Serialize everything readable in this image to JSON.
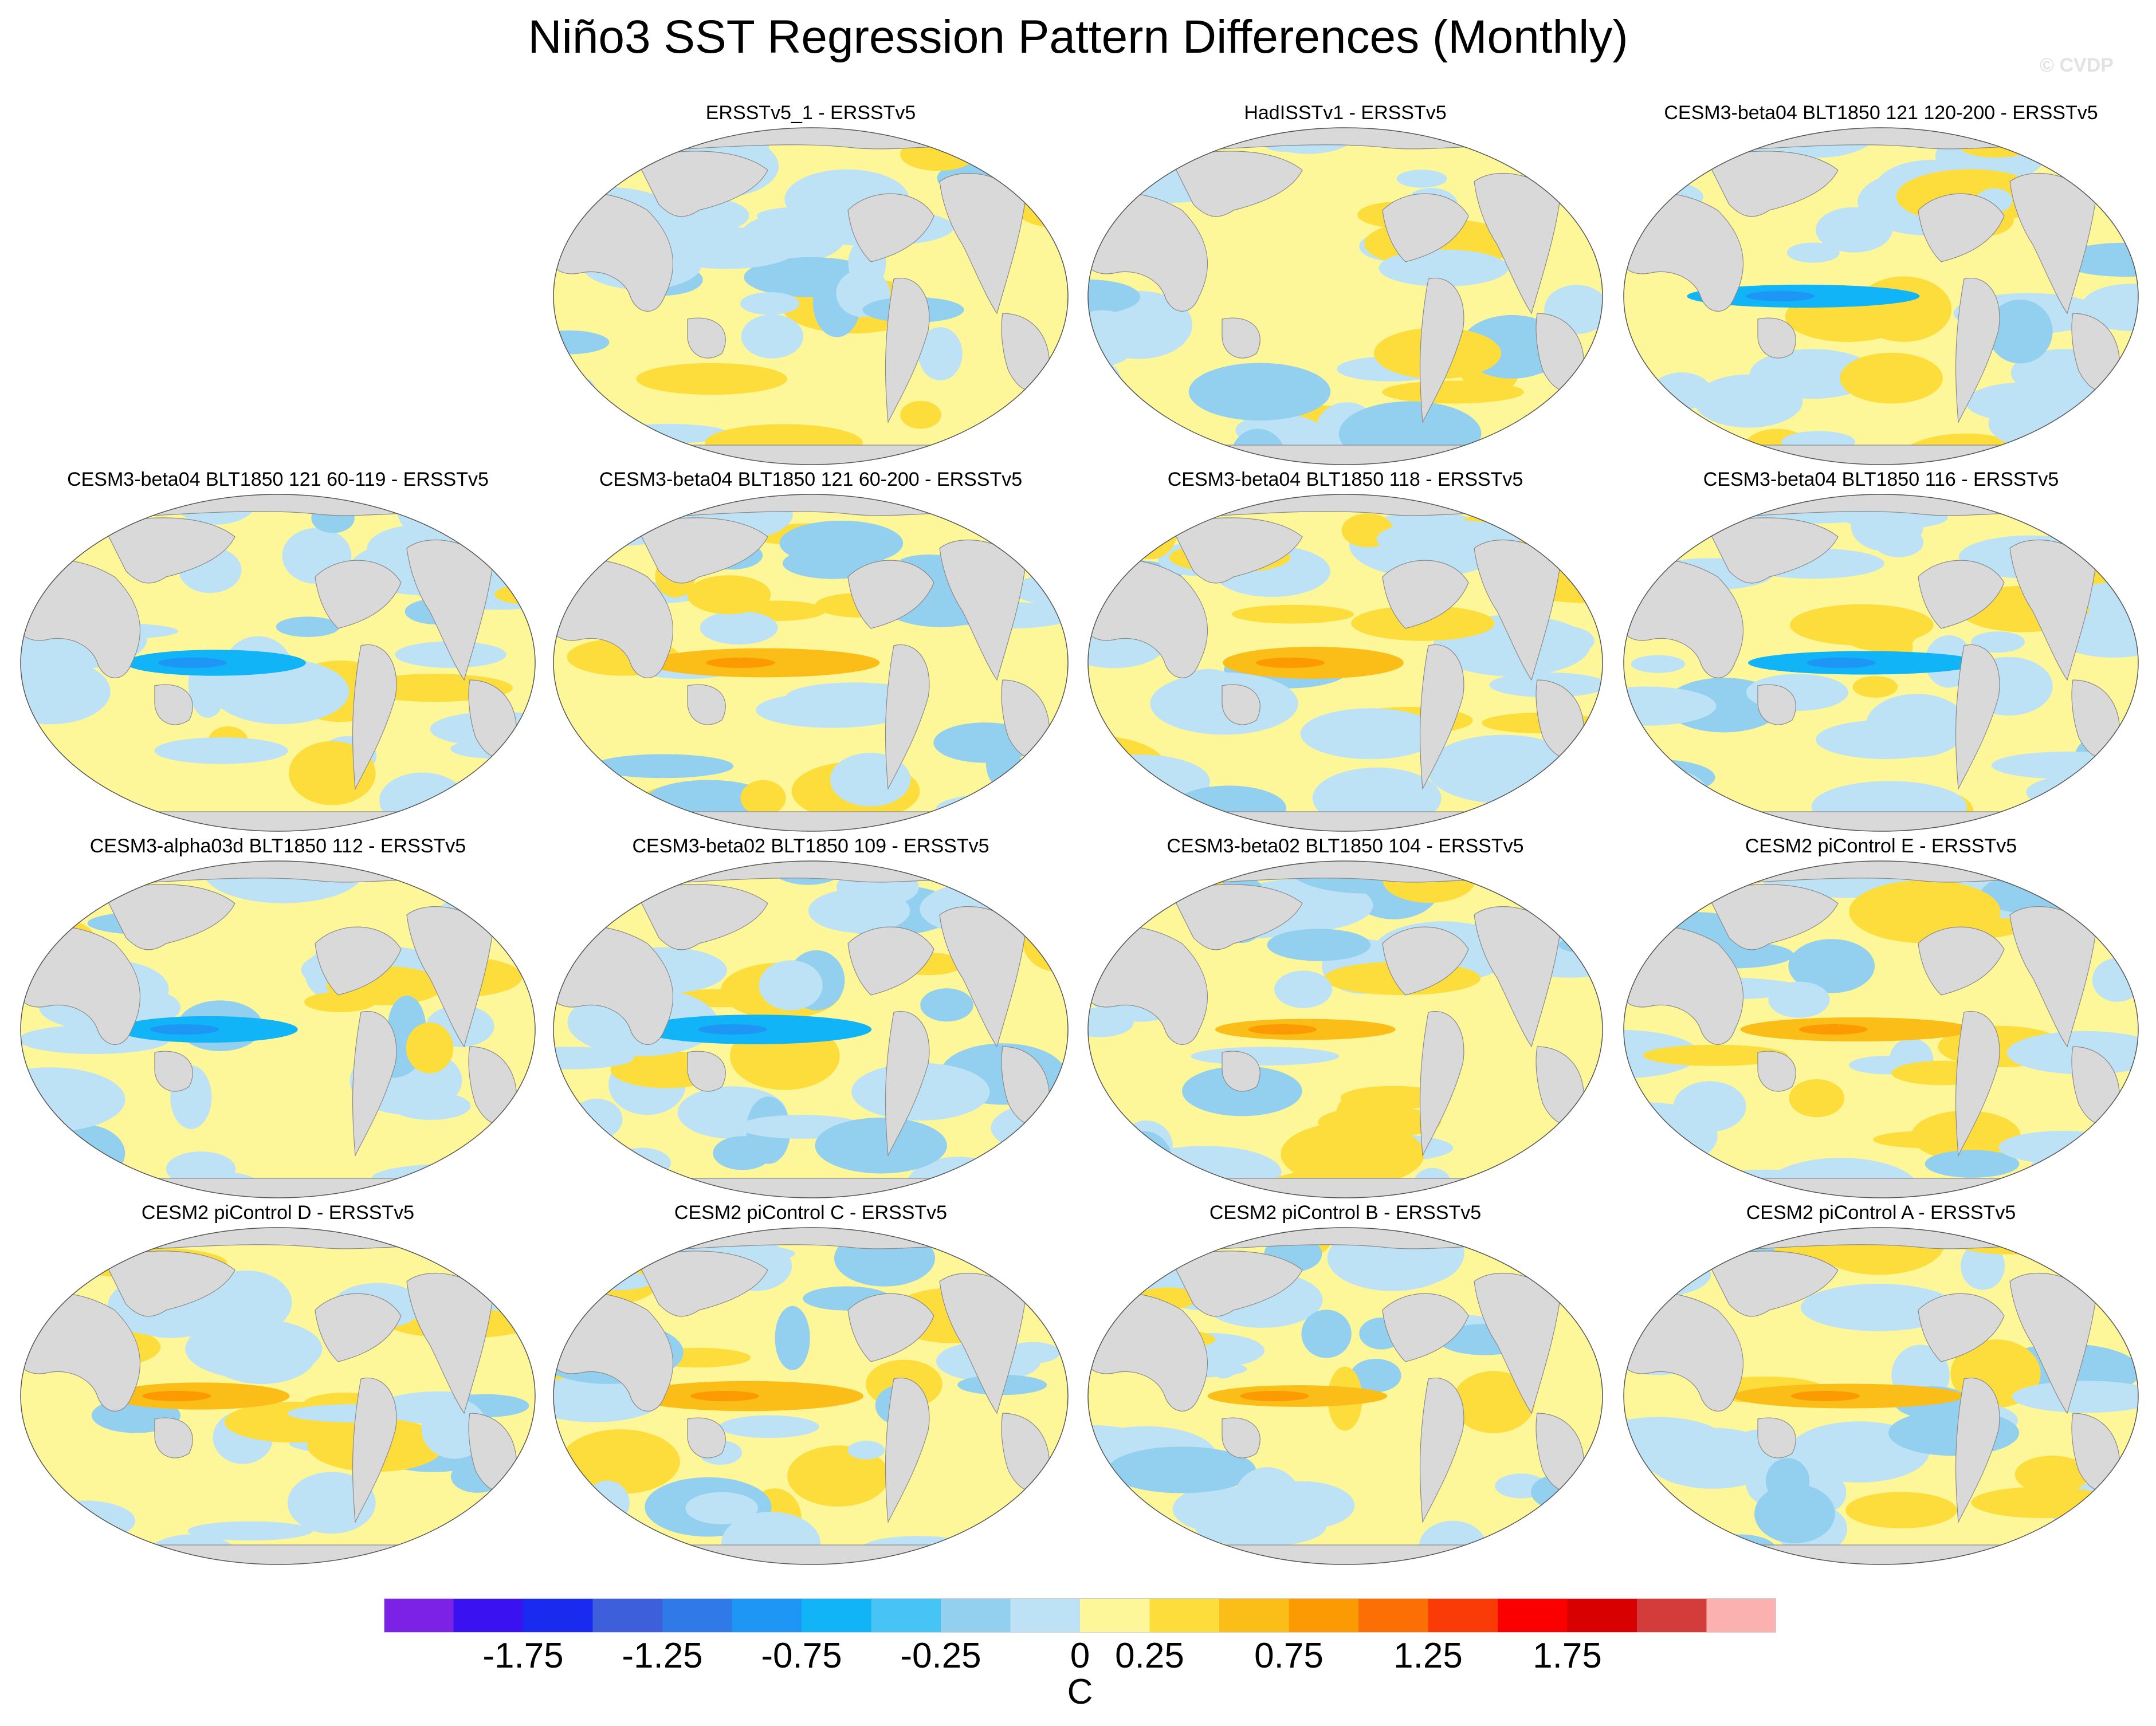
{
  "title": "Niño3 SST Regression Pattern Differences (Monthly)",
  "watermark": "© CVDP",
  "panels": [
    {
      "label": "",
      "empty": true
    },
    {
      "label": "ERSSTv5_1 - ERSSTv5"
    },
    {
      "label": "HadISSTv1 - ERSSTv5"
    },
    {
      "label": "CESM3-beta04 BLT1850 121 120-200 - ERSSTv5"
    },
    {
      "label": "CESM3-beta04 BLT1850 121 60-119 - ERSSTv5"
    },
    {
      "label": "CESM3-beta04 BLT1850 121 60-200 - ERSSTv5"
    },
    {
      "label": "CESM3-beta04 BLT1850 118 - ERSSTv5"
    },
    {
      "label": "CESM3-beta04 BLT1850 116 - ERSSTv5"
    },
    {
      "label": "CESM3-alpha03d BLT1850 112 - ERSSTv5"
    },
    {
      "label": "CESM3-beta02 BLT1850 109 - ERSSTv5"
    },
    {
      "label": "CESM3-beta02 BLT1850 104 - ERSSTv5"
    },
    {
      "label": "CESM2 piControl E - ERSSTv5"
    },
    {
      "label": "CESM2 piControl D - ERSSTv5"
    },
    {
      "label": "CESM2 piControl C - ERSSTv5"
    },
    {
      "label": "CESM2 piControl B - ERSSTv5"
    },
    {
      "label": "CESM2 piControl A - ERSSTv5"
    }
  ],
  "colorbar": {
    "colors": [
      "#7b22e6",
      "#3a12f2",
      "#1a2bf0",
      "#3d5fdc",
      "#2f7ae8",
      "#1e96f5",
      "#10b4f7",
      "#45c4f5",
      "#93cfee",
      "#bde2f5",
      "#fdf79a",
      "#fcdd3c",
      "#fbbd18",
      "#fc9a03",
      "#fb6f05",
      "#fb3b07",
      "#fb0000",
      "#d80000",
      "#d43b3b",
      "#fcb1b1"
    ],
    "tick_labels": [
      "-1.75",
      "-1.25",
      "-0.75",
      "-0.25",
      "0",
      "0.25",
      "0.75",
      "1.25",
      "1.75"
    ],
    "tick_boundaries": [
      2,
      4,
      6,
      8,
      10,
      11,
      13,
      15,
      17
    ],
    "unit": "C"
  },
  "chart_data": {
    "type": "heatmap",
    "title": "Niño3 SST Regression Pattern Differences (Monthly)",
    "projection": "global map panels",
    "colorbar_levels": [
      -2.0,
      -1.75,
      -1.5,
      -1.25,
      -1.0,
      -0.75,
      -0.5,
      -0.25,
      -0.1,
      0,
      0.1,
      0.25,
      0.5,
      0.75,
      1.0,
      1.25,
      1.5,
      1.75,
      2.0
    ],
    "colorbar_unit": "C",
    "panels": [
      "ERSSTv5_1 - ERSSTv5",
      "HadISSTv1 - ERSSTv5",
      "CESM3-beta04 BLT1850 121 120-200 - ERSSTv5",
      "CESM3-beta04 BLT1850 121 60-119 - ERSSTv5",
      "CESM3-beta04 BLT1850 121 60-200 - ERSSTv5",
      "CESM3-beta04 BLT1850 118 - ERSSTv5",
      "CESM3-beta04 BLT1850 116 - ERSSTv5",
      "CESM3-alpha03d BLT1850 112 - ERSSTv5",
      "CESM3-beta02 BLT1850 109 - ERSSTv5",
      "CESM3-beta02 BLT1850 104 - ERSSTv5",
      "CESM2 piControl E - ERSSTv5",
      "CESM2 piControl D - ERSSTv5",
      "CESM2 piControl C - ERSSTv5",
      "CESM2 piControl B - ERSSTv5",
      "CESM2 piControl A - ERSSTv5"
    ]
  }
}
